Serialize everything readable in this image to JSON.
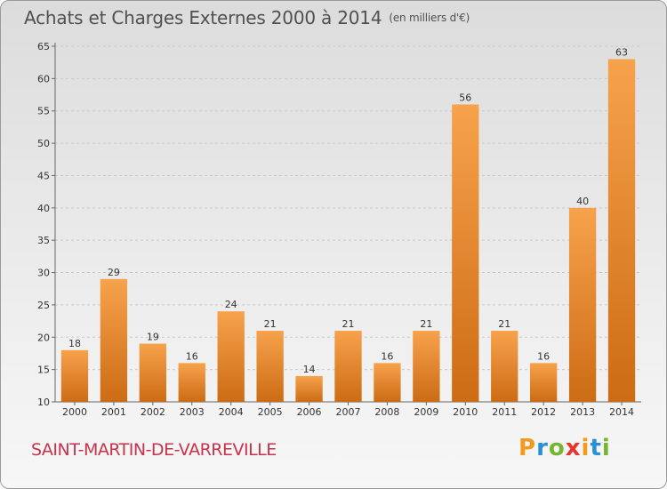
{
  "header": {
    "title": "Achats et Charges Externes 2000 à 2014",
    "subtitle": "(en milliers d'€)"
  },
  "footer": {
    "commune": "SAINT-MARTIN-DE-VARREVILLE",
    "logo_letters": [
      "P",
      "r",
      "o",
      "x",
      "i",
      "t",
      "i"
    ],
    "logo_colors": [
      "#f39a1d",
      "#2a8fd6",
      "#74b72e",
      "#e8342a",
      "#f39a1d",
      "#2a8fd6",
      "#74b72e"
    ]
  },
  "chart_data": {
    "type": "bar",
    "title": "Achats et Charges Externes 2000 à 2014",
    "subtitle": "(en milliers d'€)",
    "categories": [
      "2000",
      "2001",
      "2002",
      "2003",
      "2004",
      "2005",
      "2006",
      "2007",
      "2008",
      "2009",
      "2010",
      "2011",
      "2012",
      "2013",
      "2014"
    ],
    "values": [
      18,
      29,
      19,
      16,
      24,
      21,
      14,
      21,
      16,
      21,
      56,
      21,
      16,
      40,
      63
    ],
    "ylim": [
      10,
      65
    ],
    "yticks": [
      10,
      15,
      20,
      25,
      30,
      35,
      40,
      45,
      50,
      55,
      60,
      65
    ],
    "grid": "horizontal-dashed",
    "bar_color_top": "#f7a24c",
    "bar_color_bottom": "#cc6c14"
  }
}
